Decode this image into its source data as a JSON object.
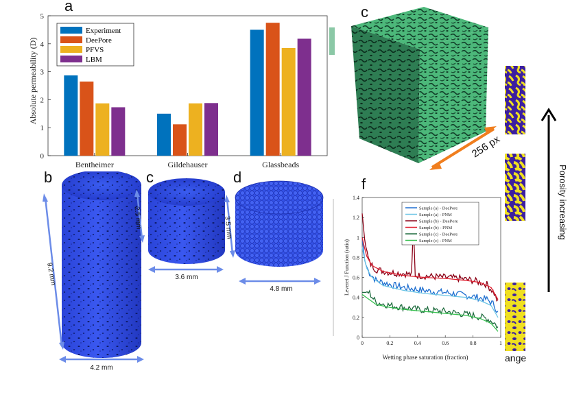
{
  "panels": {
    "a": "a",
    "b": "b",
    "c1": "c",
    "c2": "c",
    "d": "d",
    "f": "f"
  },
  "chart_data": [
    {
      "type": "bar",
      "title": "",
      "xlabel": "",
      "ylabel": "Absolute permeability (D)",
      "ylim": [
        0,
        5
      ],
      "yticks": [
        "0",
        "1",
        "2",
        "3",
        "4",
        "5"
      ],
      "categories": [
        "Bentheimer",
        "Gildehauser",
        "Glassbeads"
      ],
      "series": [
        {
          "name": "Experiment",
          "color": "#0072BD",
          "values": [
            2.87,
            1.5,
            4.5
          ]
        },
        {
          "name": "DeePore",
          "color": "#D95319",
          "values": [
            2.65,
            1.12,
            4.75
          ]
        },
        {
          "name": "PFVS",
          "color": "#EDB120",
          "values": [
            1.87,
            1.87,
            3.85
          ]
        },
        {
          "name": "LBM",
          "color": "#7E2F8E",
          "values": [
            1.73,
            1.88,
            4.18
          ]
        }
      ],
      "legend": "top-left"
    },
    {
      "type": "line",
      "xlabel": "Wetting phase saturation (fraction)",
      "ylabel": "Leveret J Function (ratio)",
      "xlim": [
        0,
        1
      ],
      "ylim": [
        0,
        1.4
      ],
      "xticks": [
        "0",
        "0.2",
        "0.4",
        "0.6",
        "0.8",
        "1"
      ],
      "yticks": [
        "0",
        "0.2",
        "0.4",
        "0.6",
        "0.8",
        "1",
        "1.2",
        "1.4"
      ],
      "legend": "top-center",
      "series": [
        {
          "name": "Sample (a) - DeePore",
          "color": "#1F6FD0",
          "kind": "noisy",
          "points": [
            [
              0,
              1.0
            ],
            [
              0.02,
              0.75
            ],
            [
              0.05,
              0.65
            ],
            [
              0.1,
              0.57
            ],
            [
              0.2,
              0.53
            ],
            [
              0.3,
              0.5
            ],
            [
              0.4,
              0.48
            ],
            [
              0.5,
              0.46
            ],
            [
              0.6,
              0.45
            ],
            [
              0.7,
              0.43
            ],
            [
              0.8,
              0.41
            ],
            [
              0.9,
              0.38
            ],
            [
              0.95,
              0.33
            ],
            [
              0.98,
              0.25
            ]
          ]
        },
        {
          "name": "Sample (a) - PNM",
          "color": "#6EC6E6",
          "kind": "smooth",
          "points": [
            [
              0,
              0.9
            ],
            [
              0.03,
              0.7
            ],
            [
              0.07,
              0.6
            ],
            [
              0.15,
              0.52
            ],
            [
              0.3,
              0.47
            ],
            [
              0.45,
              0.44
            ],
            [
              0.6,
              0.42
            ],
            [
              0.75,
              0.4
            ],
            [
              0.85,
              0.37
            ],
            [
              0.93,
              0.32
            ],
            [
              0.98,
              0.2
            ]
          ]
        },
        {
          "name": "Sample (b) - DeePore",
          "color": "#8B0016",
          "kind": "noisy",
          "points": [
            [
              0,
              1.24
            ],
            [
              0.02,
              0.95
            ],
            [
              0.05,
              0.75
            ],
            [
              0.1,
              0.68
            ],
            [
              0.2,
              0.65
            ],
            [
              0.3,
              0.64
            ],
            [
              0.4,
              0.62
            ],
            [
              0.5,
              0.61
            ],
            [
              0.6,
              0.6
            ],
            [
              0.7,
              0.59
            ],
            [
              0.8,
              0.57
            ],
            [
              0.9,
              0.53
            ],
            [
              0.95,
              0.45
            ],
            [
              0.98,
              0.35
            ]
          ],
          "spike": [
            0.37,
            0.96
          ]
        },
        {
          "name": "Sample (b) - PNM",
          "color": "#E02030",
          "kind": "smooth",
          "points": [
            [
              0,
              1.0
            ],
            [
              0.03,
              0.82
            ],
            [
              0.07,
              0.72
            ],
            [
              0.15,
              0.66
            ],
            [
              0.3,
              0.62
            ],
            [
              0.45,
              0.6
            ],
            [
              0.6,
              0.59
            ],
            [
              0.75,
              0.57
            ],
            [
              0.85,
              0.55
            ],
            [
              0.93,
              0.5
            ],
            [
              0.98,
              0.38
            ]
          ]
        },
        {
          "name": "Sample (c) - DeePore",
          "color": "#1E6B3E",
          "kind": "noisy",
          "points": [
            [
              0,
              0.45
            ],
            [
              0.05,
              0.45
            ],
            [
              0.1,
              0.35
            ],
            [
              0.2,
              0.32
            ],
            [
              0.3,
              0.3
            ],
            [
              0.4,
              0.28
            ],
            [
              0.5,
              0.27
            ],
            [
              0.6,
              0.26
            ],
            [
              0.7,
              0.24
            ],
            [
              0.8,
              0.22
            ],
            [
              0.9,
              0.19
            ],
            [
              0.95,
              0.15
            ],
            [
              0.98,
              0.1
            ]
          ]
        },
        {
          "name": "Sample (c) - PNM",
          "color": "#38C050",
          "kind": "smooth",
          "points": [
            [
              0,
              0.43
            ],
            [
              0.05,
              0.38
            ],
            [
              0.1,
              0.33
            ],
            [
              0.2,
              0.3
            ],
            [
              0.3,
              0.28
            ],
            [
              0.45,
              0.26
            ],
            [
              0.6,
              0.24
            ],
            [
              0.75,
              0.22
            ],
            [
              0.85,
              0.19
            ],
            [
              0.93,
              0.14
            ],
            [
              0.98,
              0.06
            ]
          ]
        }
      ]
    }
  ],
  "dims": {
    "b_height": "9.2 mm",
    "b_width": "4.2 mm",
    "c_height": "2.5 mm",
    "c_width": "3.6 mm",
    "d_height": "3.5 mm",
    "d_width": "4.8 mm",
    "cube": "256 px"
  },
  "side_label": "Porosity increasing",
  "range_fragment": "ange",
  "colors": {
    "cylinder": "#2F4FE0",
    "cube": "#3DA36A",
    "slice_blue": "#3C1FA0",
    "slice_yellow": "#F0E020",
    "arrow_orange": "#F07E1E",
    "dim_arrow": "#6C8CE8"
  }
}
